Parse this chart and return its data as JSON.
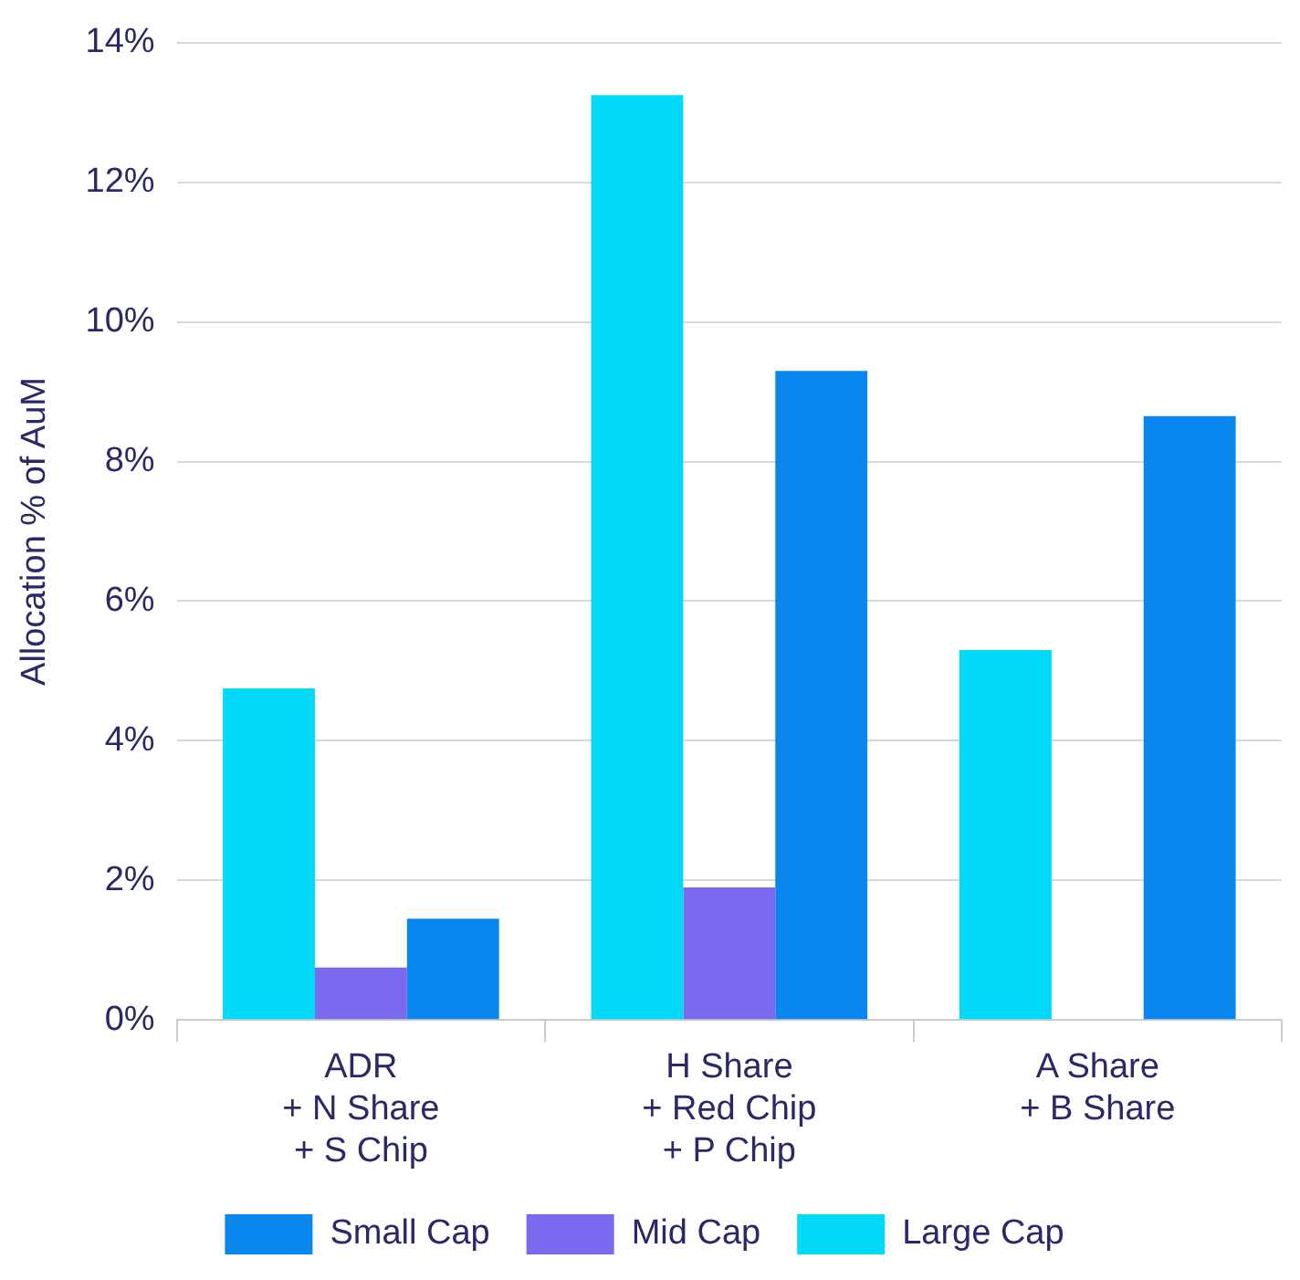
{
  "chart_data": {
    "type": "bar",
    "ylabel": "Allocation % of AuM",
    "categories": [
      "ADR\n+ N Share\n+ S Chip",
      "H Share\n+ Red Chip\n+ P Chip",
      "A Share\n+ B Share"
    ],
    "series": [
      {
        "name": "Large Cap",
        "color": "#00d9f7",
        "values": [
          4.75,
          13.25,
          5.3
        ]
      },
      {
        "name": "Mid Cap",
        "color": "#7b69f0",
        "values": [
          0.75,
          1.9,
          null
        ]
      },
      {
        "name": "Small Cap",
        "color": "#0a87ef",
        "values": [
          1.45,
          9.3,
          8.65
        ]
      }
    ],
    "ylim": [
      0,
      14
    ],
    "yticks": [
      {
        "value": 0,
        "label": "0%"
      },
      {
        "value": 2,
        "label": "2%"
      },
      {
        "value": 4,
        "label": "4%"
      },
      {
        "value": 6,
        "label": "6%"
      },
      {
        "value": 8,
        "label": "8%"
      },
      {
        "value": 10,
        "label": "10%"
      },
      {
        "value": 12,
        "label": "12%"
      },
      {
        "value": 14,
        "label": "14%"
      }
    ],
    "grid": "y",
    "legend": "bottom"
  }
}
